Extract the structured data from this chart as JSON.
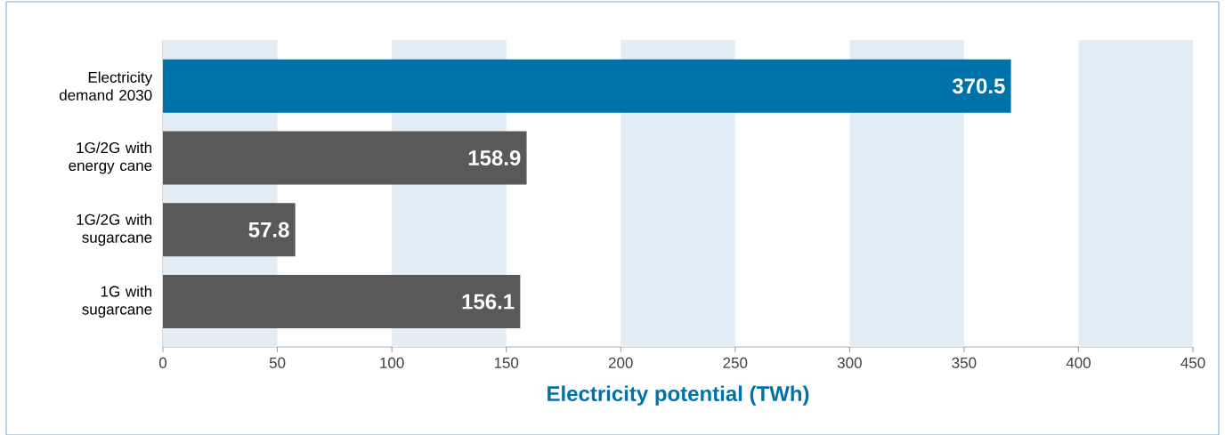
{
  "chart_data": {
    "type": "bar",
    "orientation": "horizontal",
    "categories": [
      "Electricity demand 2030",
      "1G/2G with energy cane",
      "1G/2G with sugarcane",
      "1G with sugarcane"
    ],
    "values": [
      370.5,
      158.9,
      57.8,
      156.1
    ],
    "colors": [
      "#0072aa",
      "#595959",
      "#595959",
      "#595959"
    ],
    "data_labels": true,
    "xlabel": "Electricity potential (TWh)",
    "xlim": [
      0,
      450
    ],
    "xticks": [
      0,
      50,
      100,
      150,
      200,
      250,
      300,
      350,
      400,
      450
    ],
    "bands": [
      {
        "axis": "x",
        "from": 0,
        "to": 50,
        "color": "#e3edf6"
      },
      {
        "axis": "x",
        "from": 100,
        "to": 150,
        "color": "#e3edf6"
      },
      {
        "axis": "x",
        "from": 200,
        "to": 250,
        "color": "#e3edf6"
      },
      {
        "axis": "x",
        "from": 300,
        "to": 350,
        "color": "#e3edf6"
      },
      {
        "axis": "x",
        "from": 400,
        "to": 450,
        "color": "#e3edf6"
      }
    ]
  }
}
